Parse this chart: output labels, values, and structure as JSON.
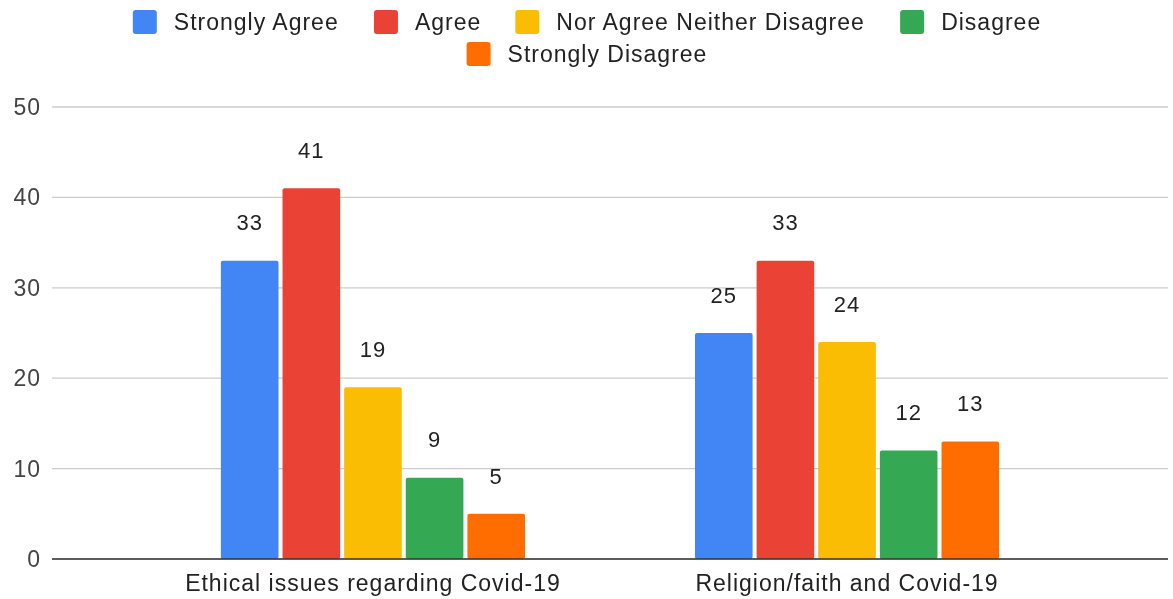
{
  "chart_data": {
    "type": "bar",
    "categories": [
      "Ethical issues regarding Covid-19",
      "Religion/faith and Covid-19"
    ],
    "series": [
      {
        "name": "Strongly Agree",
        "color": "#4285f4",
        "values": [
          33,
          25
        ]
      },
      {
        "name": "Agree",
        "color": "#ea4335",
        "values": [
          41,
          33
        ]
      },
      {
        "name": "Nor Agree Neither Disagree",
        "color": "#fbbc04",
        "values": [
          19,
          24
        ]
      },
      {
        "name": "Disagree",
        "color": "#34a853",
        "values": [
          9,
          12
        ]
      },
      {
        "name": "Strongly Disagree",
        "color": "#ff6d01",
        "values": [
          5,
          13
        ]
      }
    ],
    "ylim": [
      0,
      50
    ],
    "yticks": [
      0,
      10,
      20,
      30,
      40,
      50
    ],
    "grid": "y",
    "legend": "top",
    "data_labels": true
  }
}
